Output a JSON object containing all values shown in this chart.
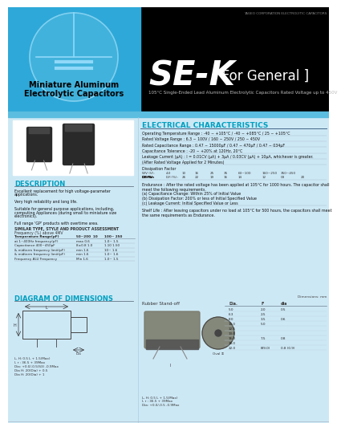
{
  "header_bg": "#000000",
  "left_header_bg": "#2ea8d8",
  "body_bg": "#cde8f5",
  "strip_color": "#5bbde0",
  "white": "#ffffff",
  "cyan_text": "#00a0c0",
  "black": "#000000",
  "header_text": "YAGEO CORPORATION ELECTROLYTIC CAPACITORS",
  "left_title_line1": "Miniature Aluminum",
  "left_title_line2": "Electrolytic Capacitors",
  "series_title": "SE-K",
  "series_subtitle": "[ For General ]",
  "series_desc": "105°C Single-Ended Lead Aluminum Electrolytic Capacitors Rated Voltage up to 450V",
  "elec_char_title": "ELECTRICAL CHARACTERISTICS",
  "elec_rows": [
    "Operating Temperature Range : -40 ~ +105°C / -40 ~ +085°C / 25 ~ +105°C",
    "Rated Voltage Range : 6.3 ~ 100V / 160 ~ 250V / 250 ~ 450V",
    "Rated Capacitance Range : 0.47 ~ 15000μF / 0.47 ~ 470μF / 0.47 ~ 034μF",
    "Capacitance Tolerance : -20 ~ +20% at 120Hz, 20°C",
    "Leakage Current (μA) : I = 0.01CV (μA) + 3μA / 0.03CV (μA) + 10μA, whichever is greater.",
    "(After Rated Voltage Applied for 2 Minutes)"
  ],
  "dissipation_label": "Dissipation Factor",
  "df_header": [
    "WV (V):",
    "4.0",
    "10",
    "16",
    "25",
    "35",
    "63~100",
    "160~250",
    "350~450"
  ],
  "df_values": [
    "D.F.(%):",
    "26",
    "22",
    "19",
    "16",
    "14",
    "12",
    "03",
    "20"
  ],
  "endurance_title": "Endurance : After the rated voltage has been applied at 105°C for 1000 hours. The capacitor shall",
  "endurance_lines": [
    "meet the following requirements.",
    "(a) Capacitance Change: Within 25% of Initial Value",
    "(b) Dissipation Factor: 200% or less of Initial Specified Value",
    "(c) Leakage Current: Initial Specified Value or Less"
  ],
  "shelf_life_lines": [
    "Shelf Life : After leaving capacitors under no load at 105°C for 500 hours, the capacitors shall meet",
    "the same requirements as Endurance."
  ],
  "description_title": "DESCRIPTION",
  "desc_lines": [
    "Excellent replacement for high voltage-parameter",
    "applications.",
    "",
    "Very high reliability and long life.",
    "",
    "Suitable for general purpose applications, including,",
    "computing Appliances (during small to miniature size",
    "electronics).",
    "",
    "Full range 'GP' products with overtime area."
  ],
  "spec_header_line1": "SIMILAR TYPE, STYLE AND PRODUCT ASSESSMENT",
  "spec_header_line2": "Frequency (%) above 4MV",
  "spec_col_headers": [
    "Temperature Range(pF)",
    "50~200  10",
    "100~ 250"
  ],
  "spec_rows": [
    [
      "at 1~400Hz frequency(pF)",
      "max 0.6",
      "1.0~ 1.5"
    ],
    [
      "Capacitance 400~450pF",
      "8±0.8 1.0",
      "1.10 1.50"
    ],
    [
      "& midterm frequency limit(pF)",
      "min 1.6",
      "10~ 1.6"
    ],
    [
      "& midterm frequency limit(pF)",
      "min 1.6",
      "1.0~ 1.6"
    ],
    [
      "Frequency ALU Frequency",
      "Min 1.6",
      "1.0~ 1.5"
    ]
  ],
  "diagram_title": "DIAGRAM OF DIMENSIONS",
  "dim_label": "Dimensions: mm",
  "rubber_standoff": "Rubber Stand-off",
  "dim_table_header": [
    "Dia.",
    "F",
    "dia"
  ],
  "dim_rows": [
    [
      "5.0",
      "2.0",
      "0.5"
    ],
    [
      "6.3",
      "2.5",
      ""
    ],
    [
      "8.0",
      "3.5",
      "0.6"
    ],
    [
      "10.0",
      "5.0",
      ""
    ],
    [
      "12.5",
      "",
      ""
    ],
    [
      "13.0",
      "",
      ""
    ],
    [
      "16.0",
      "7.5",
      "0.8"
    ],
    [
      "18.0",
      "",
      ""
    ],
    [
      "22.0",
      "8(9.0)",
      "0.8 (0.9)"
    ]
  ],
  "dim_notes": [
    "L, H: 0.5 L + 1.5(Max)",
    "l, r : 36.5 + 39Max",
    "Dia: +0.0/-0.5(S3) -0.9Max"
  ],
  "dim_notes2": [
    "Dia H: 20(Dia) + 0.5",
    "Dia H: 20(Dia) + 1"
  ]
}
